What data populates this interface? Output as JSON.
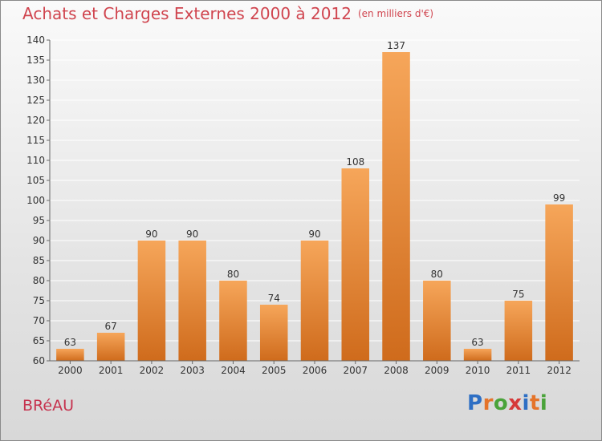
{
  "header": {
    "title": "Achats et Charges Externes 2000 à 2012",
    "unit": "(en milliers d'€)"
  },
  "footer": {
    "place": "BRéAU",
    "logo_letters": [
      "P",
      "r",
      "o",
      "x",
      "i",
      "t",
      "i"
    ],
    "logo_colors": [
      "#2e6fc4",
      "#e5742a",
      "#4aa33a",
      "#d63a3a",
      "#2e6fc4",
      "#e5742a",
      "#4aa33a"
    ]
  },
  "colors": {
    "title": "#d0454f",
    "bar_top": "#f6a65a",
    "bar_bottom": "#cf6b1c",
    "grid": "#ffffff",
    "axis": "#666666",
    "label": "#333333"
  },
  "chart_data": {
    "type": "bar",
    "title": "Achats et Charges Externes 2000 à 2012",
    "categories": [
      "2000",
      "2001",
      "2002",
      "2003",
      "2004",
      "2005",
      "2006",
      "2007",
      "2008",
      "2009",
      "2010",
      "2011",
      "2012"
    ],
    "values": [
      63,
      67,
      90,
      90,
      80,
      74,
      90,
      108,
      137,
      80,
      63,
      75,
      99
    ],
    "ylim": [
      60,
      140
    ],
    "yticks": [
      60,
      65,
      70,
      75,
      80,
      85,
      90,
      95,
      100,
      105,
      110,
      115,
      120,
      125,
      130,
      135,
      140
    ],
    "grid": true,
    "xlabel": "",
    "ylabel": ""
  }
}
